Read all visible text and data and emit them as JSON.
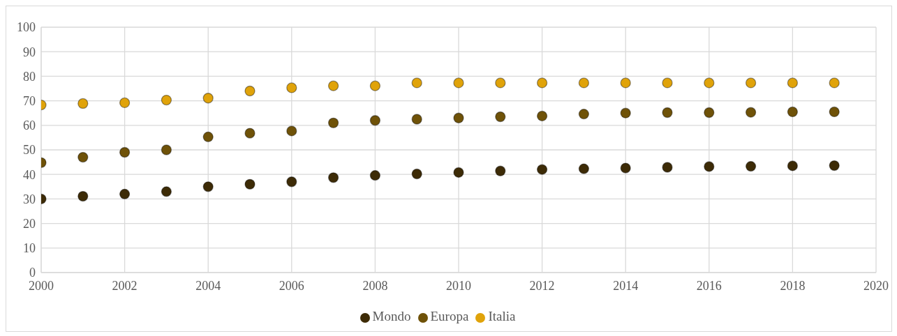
{
  "chart_data": {
    "type": "scatter",
    "x": [
      2000,
      2001,
      2002,
      2003,
      2004,
      2005,
      2006,
      2007,
      2008,
      2009,
      2010,
      2011,
      2012,
      2013,
      2014,
      2015,
      2016,
      2017,
      2018,
      2019
    ],
    "series": [
      {
        "name": "Mondo",
        "color": "#3d2b06",
        "values": [
          30,
          31.1,
          32,
          33,
          35,
          36,
          37,
          38.7,
          39.6,
          40.2,
          40.8,
          41.4,
          42,
          42.3,
          42.6,
          42.9,
          43.2,
          43.3,
          43.5,
          43.6
        ]
      },
      {
        "name": "Europa",
        "color": "#6f5208",
        "values": [
          44.8,
          47,
          49,
          50,
          55.3,
          56.8,
          57.7,
          61,
          62,
          62.5,
          63,
          63.5,
          63.8,
          64.6,
          65,
          65.2,
          65.2,
          65.3,
          65.5,
          65.5
        ]
      },
      {
        "name": "Italia",
        "color": "#e0a30a",
        "values": [
          68.3,
          68.9,
          69.2,
          70.3,
          71.1,
          74,
          75.3,
          76.1,
          76.1,
          77.3,
          77.3,
          77.3,
          77.3,
          77.3,
          77.3,
          77.3,
          77.3,
          77.3,
          77.3,
          77.3
        ]
      }
    ],
    "xlim": [
      2000,
      2020
    ],
    "xticks": [
      2000,
      2002,
      2004,
      2006,
      2008,
      2010,
      2012,
      2014,
      2016,
      2018,
      2020
    ],
    "ylim": [
      0,
      100
    ],
    "yticks": [
      0,
      10,
      20,
      30,
      40,
      50,
      60,
      70,
      80,
      90,
      100
    ],
    "grid": true,
    "legend": "bottom",
    "marker": "circle"
  }
}
